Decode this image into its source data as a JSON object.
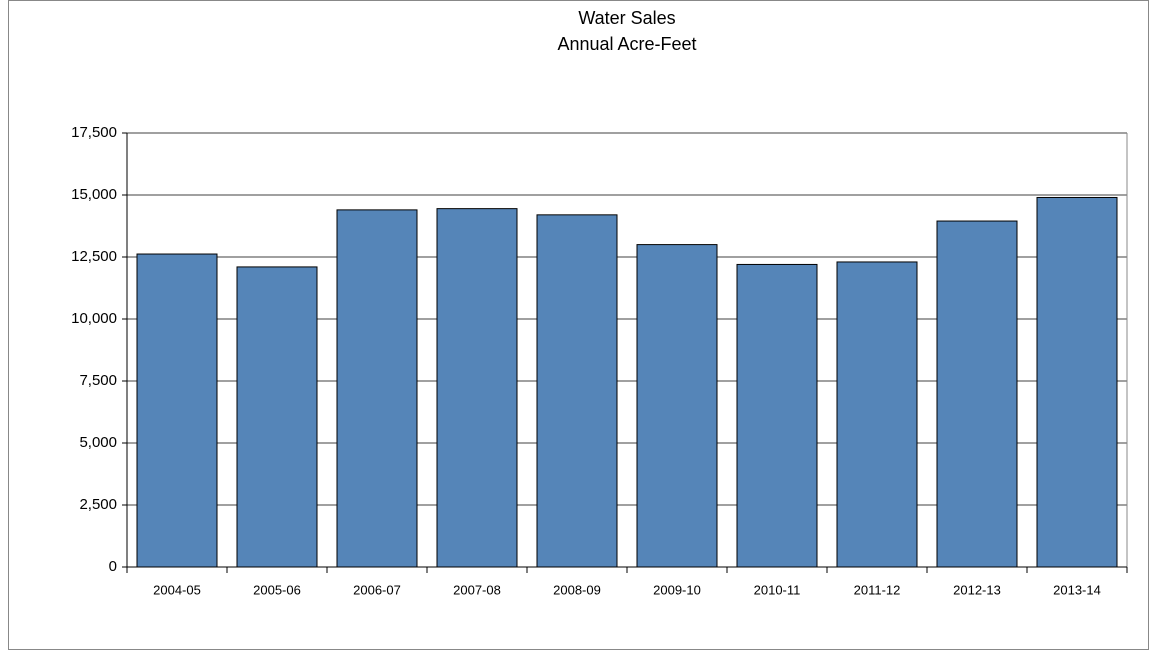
{
  "chart_data": {
    "type": "bar",
    "title": "Water Sales",
    "subtitle": "Annual Acre-Feet",
    "categories": [
      "2004-05",
      "2005-06",
      "2006-07",
      "2007-08",
      "2008-09",
      "2009-10",
      "2010-11",
      "2011-12",
      "2012-13",
      "2013-14"
    ],
    "values": [
      12620,
      12100,
      14400,
      14450,
      14200,
      13000,
      12200,
      12300,
      13950,
      14900
    ],
    "color": "#5585b8",
    "ylim": [
      0,
      17500
    ],
    "yticks": [
      0,
      {
        "value": 2500,
        "label": "2,500"
      },
      {
        "value": 5000,
        "label": "5,000"
      },
      {
        "value": 7500,
        "label": "7,500"
      },
      {
        "value": 10000,
        "label": "10,000"
      },
      {
        "value": 12500,
        "label": "12,500"
      },
      {
        "value": 15000,
        "label": "15,000"
      },
      {
        "value": 17500,
        "label": "17,500"
      }
    ],
    "grid": true
  }
}
